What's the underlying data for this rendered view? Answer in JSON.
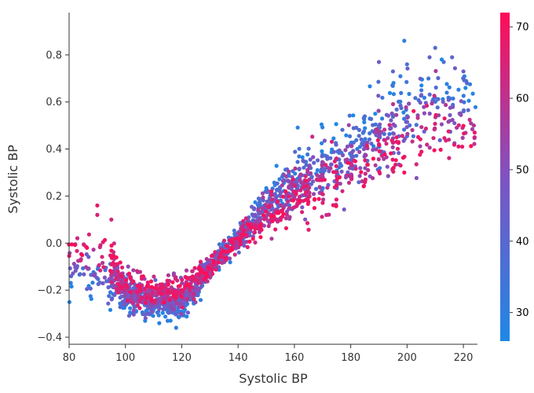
{
  "chart_data": {
    "type": "scatter",
    "title": "",
    "xlabel": "Systolic BP",
    "ylabel": "Systolic BP",
    "xlim": [
      80,
      225
    ],
    "ylim": [
      -0.43,
      0.98
    ],
    "x_ticks": [
      "80",
      "100",
      "120",
      "140",
      "160",
      "180",
      "200",
      "220"
    ],
    "y_ticks": [
      "−0.4",
      "−0.2",
      "0.0",
      "0.2",
      "0.4",
      "0.6",
      "0.8"
    ],
    "x_tick_values": [
      80,
      100,
      120,
      140,
      160,
      180,
      200,
      220
    ],
    "y_tick_values": [
      -0.4,
      -0.2,
      0.0,
      0.2,
      0.4,
      0.6,
      0.8
    ],
    "grid": false,
    "colorbar": {
      "range": [
        26,
        72
      ],
      "ticks": [
        "30",
        "40",
        "50",
        "60",
        "70"
      ],
      "tick_values": [
        30,
        40,
        50,
        60,
        70
      ],
      "color_low": "#1e88e5",
      "color_high": "#ff0d57"
    },
    "trend": [
      {
        "x": 80,
        "y": -0.08,
        "spread": 0.06
      },
      {
        "x": 90,
        "y": -0.09,
        "spread": 0.1
      },
      {
        "x": 100,
        "y": -0.2,
        "spread": 0.08
      },
      {
        "x": 110,
        "y": -0.24,
        "spread": 0.06
      },
      {
        "x": 120,
        "y": -0.23,
        "spread": 0.07
      },
      {
        "x": 125,
        "y": -0.18,
        "spread": 0.06
      },
      {
        "x": 130,
        "y": -0.1,
        "spread": 0.05
      },
      {
        "x": 140,
        "y": 0.02,
        "spread": 0.06
      },
      {
        "x": 150,
        "y": 0.14,
        "spread": 0.09
      },
      {
        "x": 160,
        "y": 0.22,
        "spread": 0.12
      },
      {
        "x": 170,
        "y": 0.29,
        "spread": 0.14
      },
      {
        "x": 180,
        "y": 0.35,
        "spread": 0.15
      },
      {
        "x": 190,
        "y": 0.43,
        "spread": 0.17
      },
      {
        "x": 200,
        "y": 0.5,
        "spread": 0.18
      },
      {
        "x": 210,
        "y": 0.55,
        "spread": 0.17
      },
      {
        "x": 220,
        "y": 0.57,
        "spread": 0.13
      },
      {
        "x": 224,
        "y": 0.52,
        "spread": 0.06
      }
    ],
    "highlights": [
      {
        "x": 199,
        "y": 0.86,
        "age": 30
      },
      {
        "x": 210,
        "y": 0.83,
        "age": 38
      },
      {
        "x": 208,
        "y": 0.79,
        "age": 42
      },
      {
        "x": 213,
        "y": 0.77,
        "age": 36
      },
      {
        "x": 216,
        "y": 0.79,
        "age": 40
      },
      {
        "x": 190,
        "y": 0.77,
        "age": 44
      },
      {
        "x": 195,
        "y": 0.73,
        "age": 40
      },
      {
        "x": 200,
        "y": 0.76,
        "age": 35
      },
      {
        "x": 220,
        "y": 0.73,
        "age": 45
      },
      {
        "x": 90,
        "y": 0.16,
        "age": 68
      },
      {
        "x": 90,
        "y": 0.12,
        "age": 66
      },
      {
        "x": 95,
        "y": 0.1,
        "age": 64
      },
      {
        "x": 118,
        "y": -0.36,
        "age": 30
      },
      {
        "x": 112,
        "y": -0.34,
        "age": 28
      },
      {
        "x": 115,
        "y": -0.33,
        "age": 31
      },
      {
        "x": 107,
        "y": -0.33,
        "age": 29
      },
      {
        "x": 224,
        "y": 0.47,
        "age": 68
      },
      {
        "x": 224,
        "y": 0.45,
        "age": 64
      },
      {
        "x": 199,
        "y": 0.3,
        "age": 70
      }
    ]
  }
}
